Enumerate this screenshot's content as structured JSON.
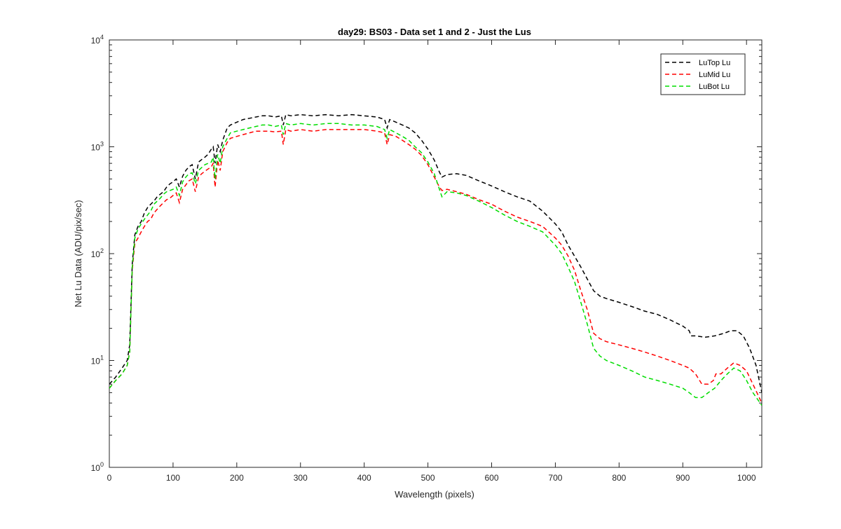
{
  "chart_data": {
    "type": "line",
    "title": "day29: BS03 - Data set 1 and 2 - Just the Lus",
    "xlabel": "Wavelength (pixels)",
    "ylabel": "Net Lu Data (ADU/pix/sec)",
    "xlim": [
      0,
      1024
    ],
    "ylim": [
      1,
      10000
    ],
    "yscale": "log",
    "grid": false,
    "legend_position": "top-right",
    "x_ticks": [
      "0",
      "100",
      "200",
      "300",
      "400",
      "500",
      "600",
      "700",
      "800",
      "900",
      "1000"
    ],
    "y_ticks": [
      {
        "base": "10",
        "exp": "0"
      },
      {
        "base": "10",
        "exp": "1"
      },
      {
        "base": "10",
        "exp": "2"
      },
      {
        "base": "10",
        "exp": "3"
      },
      {
        "base": "10",
        "exp": "4"
      }
    ],
    "series": [
      {
        "name": "LuTop  Lu",
        "color": "#000000",
        "style": "dashed",
        "points": [
          [
            0,
            6
          ],
          [
            10,
            7
          ],
          [
            20,
            8.5
          ],
          [
            28,
            10
          ],
          [
            32,
            14
          ],
          [
            36,
            80
          ],
          [
            40,
            150
          ],
          [
            45,
            180
          ],
          [
            50,
            200
          ],
          [
            55,
            240
          ],
          [
            60,
            270
          ],
          [
            65,
            290
          ],
          [
            70,
            310
          ],
          [
            75,
            340
          ],
          [
            80,
            360
          ],
          [
            85,
            380
          ],
          [
            90,
            420
          ],
          [
            95,
            450
          ],
          [
            100,
            470
          ],
          [
            105,
            500
          ],
          [
            110,
            420
          ],
          [
            115,
            530
          ],
          [
            120,
            600
          ],
          [
            125,
            650
          ],
          [
            130,
            680
          ],
          [
            135,
            500
          ],
          [
            140,
            720
          ],
          [
            145,
            760
          ],
          [
            150,
            800
          ],
          [
            155,
            850
          ],
          [
            160,
            950
          ],
          [
            163,
            1000
          ],
          [
            166,
            700
          ],
          [
            170,
            1050
          ],
          [
            174,
            900
          ],
          [
            178,
            1150
          ],
          [
            185,
            1500
          ],
          [
            190,
            1600
          ],
          [
            200,
            1700
          ],
          [
            210,
            1800
          ],
          [
            220,
            1850
          ],
          [
            230,
            1900
          ],
          [
            240,
            1950
          ],
          [
            250,
            1950
          ],
          [
            260,
            1900
          ],
          [
            270,
            1950
          ],
          [
            273,
            1600
          ],
          [
            277,
            2000
          ],
          [
            285,
            1950
          ],
          [
            300,
            2000
          ],
          [
            320,
            1950
          ],
          [
            340,
            2000
          ],
          [
            360,
            1950
          ],
          [
            380,
            2000
          ],
          [
            400,
            1950
          ],
          [
            420,
            1900
          ],
          [
            432,
            1800
          ],
          [
            436,
            1500
          ],
          [
            440,
            1800
          ],
          [
            450,
            1700
          ],
          [
            460,
            1600
          ],
          [
            470,
            1500
          ],
          [
            480,
            1350
          ],
          [
            490,
            1150
          ],
          [
            500,
            950
          ],
          [
            510,
            750
          ],
          [
            518,
            580
          ],
          [
            522,
            520
          ],
          [
            530,
            550
          ],
          [
            545,
            560
          ],
          [
            560,
            540
          ],
          [
            580,
            480
          ],
          [
            600,
            430
          ],
          [
            620,
            380
          ],
          [
            640,
            340
          ],
          [
            660,
            310
          ],
          [
            680,
            250
          ],
          [
            700,
            190
          ],
          [
            710,
            160
          ],
          [
            720,
            120
          ],
          [
            730,
            95
          ],
          [
            740,
            75
          ],
          [
            750,
            58
          ],
          [
            760,
            45
          ],
          [
            770,
            40
          ],
          [
            780,
            38
          ],
          [
            800,
            35
          ],
          [
            820,
            32
          ],
          [
            840,
            29
          ],
          [
            860,
            27
          ],
          [
            880,
            24
          ],
          [
            900,
            21
          ],
          [
            910,
            19
          ],
          [
            913,
            17
          ],
          [
            920,
            17
          ],
          [
            935,
            16.5
          ],
          [
            950,
            17
          ],
          [
            965,
            18
          ],
          [
            975,
            19
          ],
          [
            985,
            19
          ],
          [
            995,
            17
          ],
          [
            1005,
            13
          ],
          [
            1015,
            9
          ],
          [
            1024,
            5
          ]
        ]
      },
      {
        "name": "LuMid  Lu",
        "color": "#ff0000",
        "style": "dashed",
        "points": [
          [
            0,
            5.5
          ],
          [
            10,
            6.5
          ],
          [
            20,
            7.5
          ],
          [
            28,
            9
          ],
          [
            32,
            12
          ],
          [
            36,
            70
          ],
          [
            40,
            125
          ],
          [
            45,
            140
          ],
          [
            50,
            160
          ],
          [
            55,
            180
          ],
          [
            60,
            200
          ],
          [
            65,
            210
          ],
          [
            70,
            240
          ],
          [
            75,
            260
          ],
          [
            80,
            280
          ],
          [
            85,
            300
          ],
          [
            90,
            320
          ],
          [
            95,
            330
          ],
          [
            100,
            350
          ],
          [
            105,
            370
          ],
          [
            110,
            300
          ],
          [
            115,
            400
          ],
          [
            120,
            440
          ],
          [
            125,
            480
          ],
          [
            130,
            500
          ],
          [
            135,
            380
          ],
          [
            140,
            520
          ],
          [
            145,
            560
          ],
          [
            150,
            590
          ],
          [
            155,
            620
          ],
          [
            160,
            650
          ],
          [
            163,
            700
          ],
          [
            166,
            420
          ],
          [
            170,
            750
          ],
          [
            174,
            600
          ],
          [
            178,
            900
          ],
          [
            185,
            1100
          ],
          [
            190,
            1200
          ],
          [
            200,
            1250
          ],
          [
            210,
            1300
          ],
          [
            220,
            1350
          ],
          [
            230,
            1400
          ],
          [
            240,
            1400
          ],
          [
            250,
            1400
          ],
          [
            260,
            1380
          ],
          [
            270,
            1400
          ],
          [
            273,
            1050
          ],
          [
            277,
            1450
          ],
          [
            285,
            1400
          ],
          [
            300,
            1450
          ],
          [
            320,
            1400
          ],
          [
            340,
            1450
          ],
          [
            360,
            1450
          ],
          [
            380,
            1450
          ],
          [
            400,
            1450
          ],
          [
            420,
            1400
          ],
          [
            432,
            1350
          ],
          [
            436,
            1050
          ],
          [
            440,
            1300
          ],
          [
            450,
            1250
          ],
          [
            460,
            1150
          ],
          [
            470,
            1050
          ],
          [
            480,
            950
          ],
          [
            490,
            830
          ],
          [
            500,
            680
          ],
          [
            510,
            520
          ],
          [
            518,
            420
          ],
          [
            522,
            390
          ],
          [
            530,
            400
          ],
          [
            545,
            380
          ],
          [
            560,
            360
          ],
          [
            580,
            320
          ],
          [
            600,
            290
          ],
          [
            620,
            250
          ],
          [
            640,
            220
          ],
          [
            660,
            200
          ],
          [
            680,
            180
          ],
          [
            700,
            140
          ],
          [
            710,
            120
          ],
          [
            720,
            95
          ],
          [
            730,
            70
          ],
          [
            740,
            45
          ],
          [
            750,
            30
          ],
          [
            760,
            18
          ],
          [
            770,
            16
          ],
          [
            780,
            15
          ],
          [
            800,
            14
          ],
          [
            820,
            13
          ],
          [
            840,
            12
          ],
          [
            860,
            11
          ],
          [
            880,
            10
          ],
          [
            900,
            9
          ],
          [
            910,
            8.5
          ],
          [
            920,
            7.5
          ],
          [
            930,
            6
          ],
          [
            940,
            6
          ],
          [
            948,
            6.5
          ],
          [
            952,
            7.5
          ],
          [
            960,
            7.5
          ],
          [
            970,
            8.5
          ],
          [
            980,
            9.5
          ],
          [
            990,
            9
          ],
          [
            1000,
            8
          ],
          [
            1010,
            6
          ],
          [
            1024,
            4
          ]
        ]
      },
      {
        "name": "LuBot  Lu",
        "color": "#00dd00",
        "style": "dashed",
        "points": [
          [
            0,
            5.5
          ],
          [
            10,
            6.5
          ],
          [
            20,
            7.5
          ],
          [
            28,
            9
          ],
          [
            32,
            12
          ],
          [
            36,
            75
          ],
          [
            40,
            140
          ],
          [
            45,
            170
          ],
          [
            50,
            190
          ],
          [
            55,
            210
          ],
          [
            60,
            230
          ],
          [
            65,
            250
          ],
          [
            70,
            290
          ],
          [
            75,
            310
          ],
          [
            80,
            330
          ],
          [
            85,
            360
          ],
          [
            90,
            380
          ],
          [
            95,
            390
          ],
          [
            100,
            400
          ],
          [
            105,
            420
          ],
          [
            110,
            350
          ],
          [
            115,
            470
          ],
          [
            120,
            520
          ],
          [
            125,
            560
          ],
          [
            130,
            570
          ],
          [
            135,
            450
          ],
          [
            140,
            600
          ],
          [
            145,
            640
          ],
          [
            150,
            680
          ],
          [
            155,
            700
          ],
          [
            160,
            720
          ],
          [
            163,
            800
          ],
          [
            166,
            500
          ],
          [
            170,
            850
          ],
          [
            174,
            700
          ],
          [
            178,
            1000
          ],
          [
            185,
            1200
          ],
          [
            190,
            1350
          ],
          [
            200,
            1400
          ],
          [
            210,
            1450
          ],
          [
            220,
            1500
          ],
          [
            230,
            1550
          ],
          [
            240,
            1600
          ],
          [
            250,
            1600
          ],
          [
            260,
            1550
          ],
          [
            270,
            1600
          ],
          [
            273,
            1300
          ],
          [
            277,
            1650
          ],
          [
            285,
            1600
          ],
          [
            300,
            1650
          ],
          [
            320,
            1600
          ],
          [
            340,
            1650
          ],
          [
            360,
            1650
          ],
          [
            380,
            1600
          ],
          [
            400,
            1600
          ],
          [
            420,
            1550
          ],
          [
            432,
            1450
          ],
          [
            436,
            1200
          ],
          [
            440,
            1450
          ],
          [
            450,
            1350
          ],
          [
            460,
            1250
          ],
          [
            470,
            1150
          ],
          [
            480,
            1000
          ],
          [
            490,
            880
          ],
          [
            500,
            720
          ],
          [
            510,
            560
          ],
          [
            518,
            400
          ],
          [
            522,
            340
          ],
          [
            530,
            380
          ],
          [
            545,
            370
          ],
          [
            560,
            350
          ],
          [
            580,
            310
          ],
          [
            600,
            270
          ],
          [
            620,
            230
          ],
          [
            640,
            200
          ],
          [
            660,
            180
          ],
          [
            680,
            160
          ],
          [
            700,
            120
          ],
          [
            710,
            100
          ],
          [
            720,
            75
          ],
          [
            730,
            55
          ],
          [
            740,
            35
          ],
          [
            750,
            22
          ],
          [
            760,
            13
          ],
          [
            770,
            11
          ],
          [
            780,
            10
          ],
          [
            800,
            9
          ],
          [
            820,
            8
          ],
          [
            840,
            7
          ],
          [
            860,
            6.5
          ],
          [
            880,
            6
          ],
          [
            900,
            5.5
          ],
          [
            910,
            5
          ],
          [
            920,
            4.5
          ],
          [
            930,
            4.5
          ],
          [
            940,
            5
          ],
          [
            950,
            5.5
          ],
          [
            960,
            6.5
          ],
          [
            970,
            7.5
          ],
          [
            980,
            8.5
          ],
          [
            990,
            8
          ],
          [
            1000,
            6.5
          ],
          [
            1010,
            5
          ],
          [
            1024,
            3.8
          ]
        ]
      }
    ]
  }
}
